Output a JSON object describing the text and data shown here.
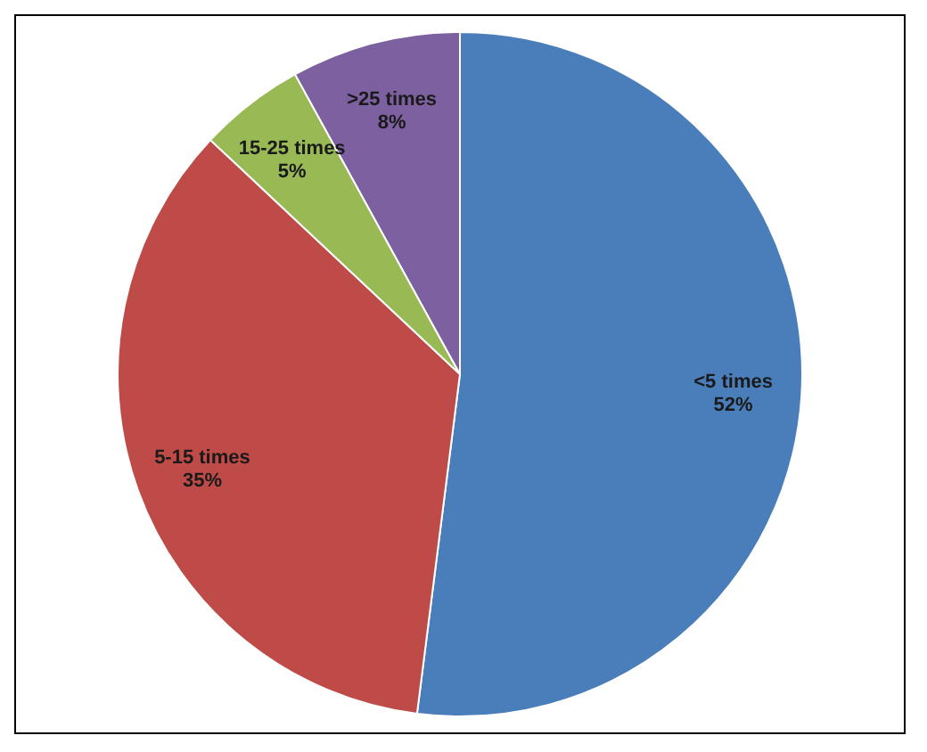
{
  "chart_data": {
    "type": "pie",
    "categories": [
      "<5 times",
      "5-15 times",
      "15-25 times",
      ">25 times"
    ],
    "values": [
      52,
      35,
      5,
      8
    ],
    "colors": [
      "#4a7ebb",
      "#be4b48",
      "#98b954",
      "#7d60a0"
    ],
    "value_labels": [
      "52%",
      "35%",
      "5%",
      "8%"
    ],
    "legend": false
  }
}
